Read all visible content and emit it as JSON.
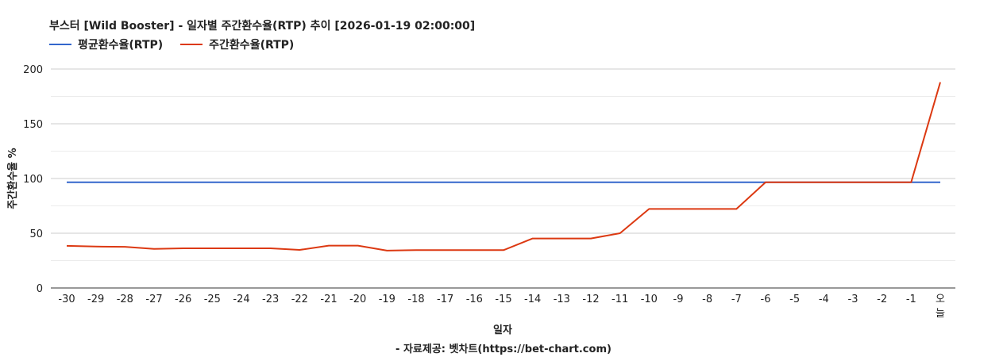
{
  "chart_data": {
    "type": "line",
    "title": "부스터 [Wild Booster] - 일자별 주간환수율(RTP) 추이 [2026-01-19 02:00:00]",
    "xlabel": "일자",
    "ylabel": "주간환수율 %",
    "ylim": [
      0,
      200
    ],
    "yticks": [
      0,
      50,
      100,
      150,
      200
    ],
    "grid": true,
    "legend_position": "top-left",
    "categories": [
      "-30",
      "-29",
      "-28",
      "-27",
      "-26",
      "-25",
      "-24",
      "-23",
      "-22",
      "-21",
      "-20",
      "-19",
      "-18",
      "-17",
      "-16",
      "-15",
      "-14",
      "-13",
      "-12",
      "-11",
      "-10",
      "-9",
      "-8",
      "-7",
      "-6",
      "-5",
      "-4",
      "-3",
      "-2",
      "-1",
      "오늘"
    ],
    "series": [
      {
        "name": "평균환수율(RTP)",
        "color": "#3366cc",
        "values": [
          96.5,
          96.5,
          96.5,
          96.5,
          96.5,
          96.5,
          96.5,
          96.5,
          96.5,
          96.5,
          96.5,
          96.5,
          96.5,
          96.5,
          96.5,
          96.5,
          96.5,
          96.5,
          96.5,
          96.5,
          96.5,
          96.5,
          96.5,
          96.5,
          96.5,
          96.5,
          96.5,
          96.5,
          96.5,
          96.5,
          96.5
        ]
      },
      {
        "name": "주간환수율(RTP)",
        "color": "#dc3912",
        "values": [
          38.5,
          37.8,
          37.6,
          35.7,
          36.2,
          36.2,
          36.2,
          36.2,
          34.8,
          38.7,
          38.7,
          34.1,
          34.6,
          34.6,
          34.6,
          34.6,
          45.2,
          45.2,
          45.2,
          50.0,
          72.2,
          72.2,
          72.2,
          72.2,
          96.5,
          96.5,
          96.5,
          96.5,
          96.5,
          96.5,
          188.0
        ]
      }
    ],
    "source": "- 자료제공: 벳차트(https://bet-chart.com)"
  }
}
